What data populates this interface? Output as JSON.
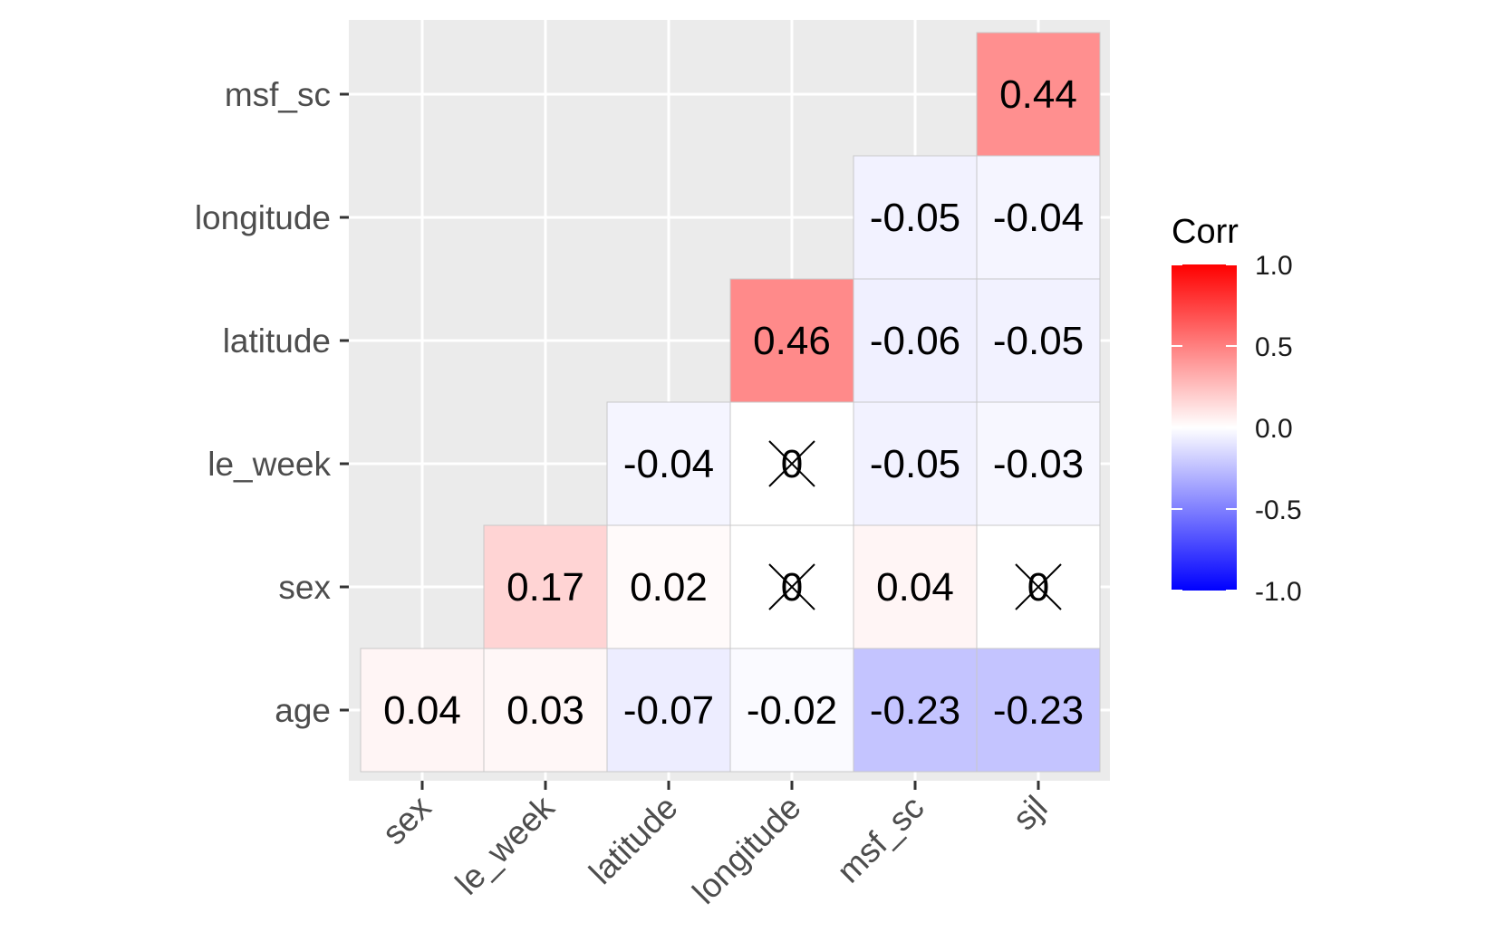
{
  "chart_data": {
    "type": "heatmap",
    "x_categories": [
      "sex",
      "le_week",
      "latitude",
      "longitude",
      "msf_sc",
      "sjl"
    ],
    "y_categories": [
      "age",
      "sex",
      "le_week",
      "latitude",
      "longitude",
      "msf_sc"
    ],
    "cells": [
      {
        "x": "sex",
        "y": "age",
        "value": 0.04,
        "label": "0.04",
        "nonsignificant": false
      },
      {
        "x": "le_week",
        "y": "age",
        "value": 0.03,
        "label": "0.03",
        "nonsignificant": false
      },
      {
        "x": "latitude",
        "y": "age",
        "value": -0.07,
        "label": "-0.07",
        "nonsignificant": false
      },
      {
        "x": "longitude",
        "y": "age",
        "value": -0.02,
        "label": "-0.02",
        "nonsignificant": false
      },
      {
        "x": "msf_sc",
        "y": "age",
        "value": -0.23,
        "label": "-0.23",
        "nonsignificant": false
      },
      {
        "x": "sjl",
        "y": "age",
        "value": -0.23,
        "label": "-0.23",
        "nonsignificant": false
      },
      {
        "x": "le_week",
        "y": "sex",
        "value": 0.17,
        "label": "0.17",
        "nonsignificant": false
      },
      {
        "x": "latitude",
        "y": "sex",
        "value": 0.02,
        "label": "0.02",
        "nonsignificant": false
      },
      {
        "x": "longitude",
        "y": "sex",
        "value": 0,
        "label": "0",
        "nonsignificant": true
      },
      {
        "x": "msf_sc",
        "y": "sex",
        "value": 0.04,
        "label": "0.04",
        "nonsignificant": false
      },
      {
        "x": "sjl",
        "y": "sex",
        "value": 0,
        "label": "0",
        "nonsignificant": true
      },
      {
        "x": "latitude",
        "y": "le_week",
        "value": -0.04,
        "label": "-0.04",
        "nonsignificant": false
      },
      {
        "x": "longitude",
        "y": "le_week",
        "value": 0,
        "label": "0",
        "nonsignificant": true
      },
      {
        "x": "msf_sc",
        "y": "le_week",
        "value": -0.05,
        "label": "-0.05",
        "nonsignificant": false
      },
      {
        "x": "sjl",
        "y": "le_week",
        "value": -0.03,
        "label": "-0.03",
        "nonsignificant": false
      },
      {
        "x": "longitude",
        "y": "latitude",
        "value": 0.46,
        "label": "0.46",
        "nonsignificant": false
      },
      {
        "x": "msf_sc",
        "y": "latitude",
        "value": -0.06,
        "label": "-0.06",
        "nonsignificant": false
      },
      {
        "x": "sjl",
        "y": "latitude",
        "value": -0.05,
        "label": "-0.05",
        "nonsignificant": false
      },
      {
        "x": "msf_sc",
        "y": "longitude",
        "value": -0.05,
        "label": "-0.05",
        "nonsignificant": false
      },
      {
        "x": "sjl",
        "y": "longitude",
        "value": -0.04,
        "label": "-0.04",
        "nonsignificant": false
      },
      {
        "x": "sjl",
        "y": "msf_sc",
        "value": 0.44,
        "label": "0.44",
        "nonsignificant": false
      }
    ],
    "legend": {
      "title": "Corr",
      "range": [
        -1.0,
        1.0
      ],
      "breaks": [
        1.0,
        0.5,
        0.0,
        -0.5,
        -1.0
      ],
      "break_labels": [
        "1.0",
        "0.5",
        "0.0",
        "-0.5",
        "-1.0"
      ],
      "colors": {
        "low": "#0000ff",
        "mid": "#ffffff",
        "high": "#ff0000"
      },
      "placement": "right"
    },
    "colors": {
      "panel": "#ebebeb",
      "grid": "#ffffff",
      "cell_border": "#c8c8c8",
      "axis_text": "#4d4d4d"
    }
  }
}
